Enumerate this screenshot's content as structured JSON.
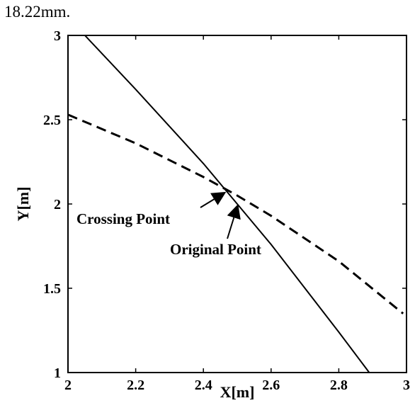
{
  "caption": "18.22mm.",
  "chart_data": {
    "type": "line",
    "xlabel": "X[m]",
    "ylabel": "Y[m]",
    "xlim": [
      2,
      3
    ],
    "ylim": [
      1,
      3
    ],
    "xticks": [
      2,
      2.2,
      2.4,
      2.6,
      2.8,
      3
    ],
    "yticks": [
      1,
      1.5,
      2,
      2.5,
      3
    ],
    "xtick_labels": [
      "2",
      "2.2",
      "2.4",
      "2.6",
      "2.8",
      "3"
    ],
    "ytick_labels": [
      "1",
      "1.5",
      "2",
      "2.5",
      "3"
    ],
    "grid": false,
    "series": [
      {
        "style": "solid",
        "color": "#000000",
        "x": [
          2.05,
          2.2,
          2.4,
          2.5,
          2.6,
          2.7,
          2.8,
          2.89
        ],
        "y": [
          3.0,
          2.68,
          2.24,
          2.0,
          1.76,
          1.5,
          1.24,
          1.0
        ]
      },
      {
        "style": "dashed",
        "color": "#000000",
        "x": [
          2.0,
          2.2,
          2.4,
          2.5,
          2.6,
          2.8,
          2.99
        ],
        "y": [
          2.53,
          2.36,
          2.16,
          2.05,
          1.93,
          1.66,
          1.35
        ]
      }
    ],
    "annotations": [
      {
        "text": "Crossing Point",
        "x": 2.46,
        "y": 2.08
      },
      {
        "text": "Original Point",
        "x": 2.5,
        "y": 2.0
      }
    ]
  }
}
